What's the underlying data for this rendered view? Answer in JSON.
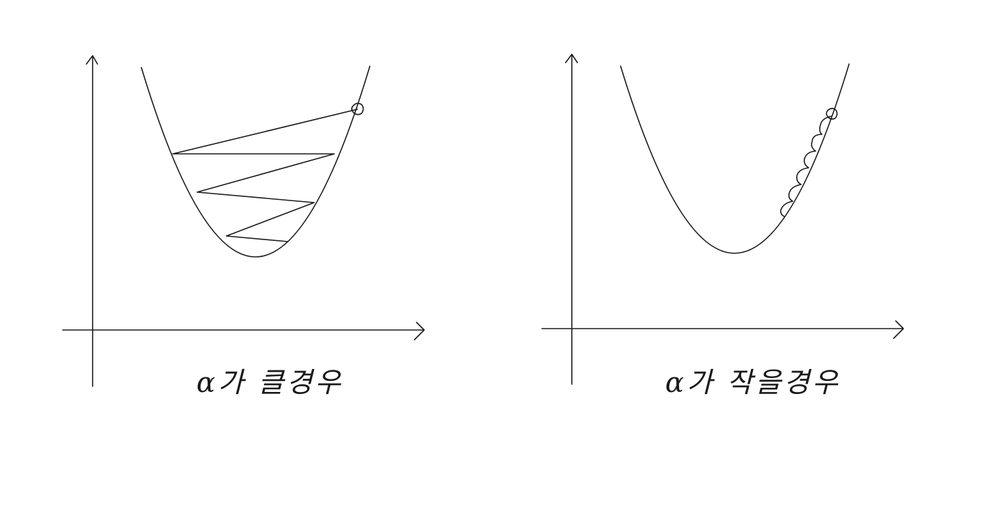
{
  "panels": [
    {
      "id": "left",
      "caption": "α가 클경우",
      "steps": "zigzag"
    },
    {
      "id": "right",
      "caption": "α가 작을경우",
      "steps": "small-loops"
    }
  ],
  "colors": {
    "ink": "#1a1a1a",
    "background": "#ffffff"
  }
}
